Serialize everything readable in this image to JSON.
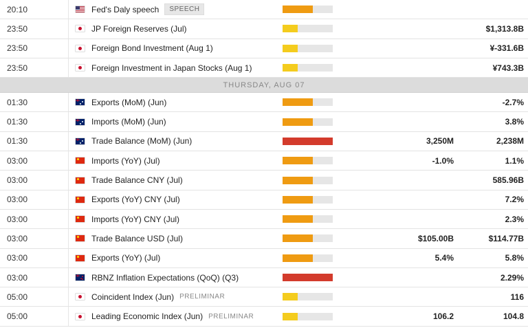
{
  "day_header": "THURSDAY, AUG 07",
  "colors": {
    "high": "#d33b2c",
    "medium": "#ef9b12",
    "low": "#f4cc1e",
    "track": "#e6e6e6"
  },
  "rows_before": [
    {
      "time": "20:10",
      "flag": "us",
      "flag_icon": "us-flag-icon",
      "event": "Fed's Daly speech",
      "badge": "SPEECH",
      "impact": "medium",
      "impact_level": 0.6,
      "consensus": "",
      "previous": ""
    },
    {
      "time": "23:50",
      "flag": "jp",
      "flag_icon": "jp-flag-icon",
      "event": "JP Foreign Reserves (Jul)",
      "impact": "low",
      "impact_level": 0.3,
      "consensus": "",
      "previous": "$1,313.8B"
    },
    {
      "time": "23:50",
      "flag": "jp",
      "flag_icon": "jp-flag-icon",
      "event": "Foreign Bond Investment (Aug 1)",
      "impact": "low",
      "impact_level": 0.3,
      "consensus": "",
      "previous": "¥-331.6B"
    },
    {
      "time": "23:50",
      "flag": "jp",
      "flag_icon": "jp-flag-icon",
      "event": "Foreign Investment in Japan Stocks (Aug 1)",
      "impact": "low",
      "impact_level": 0.3,
      "consensus": "",
      "previous": "¥743.3B"
    }
  ],
  "rows_after": [
    {
      "time": "01:30",
      "flag": "au",
      "flag_icon": "au-flag-icon",
      "event": "Exports (MoM) (Jun)",
      "impact": "medium",
      "impact_level": 0.6,
      "consensus": "",
      "previous": "-2.7%"
    },
    {
      "time": "01:30",
      "flag": "au",
      "flag_icon": "au-flag-icon",
      "event": "Imports (MoM) (Jun)",
      "impact": "medium",
      "impact_level": 0.6,
      "consensus": "",
      "previous": "3.8%"
    },
    {
      "time": "01:30",
      "flag": "au",
      "flag_icon": "au-flag-icon",
      "event": "Trade Balance (MoM) (Jun)",
      "impact": "high",
      "impact_level": 1.0,
      "consensus": "3,250M",
      "previous": "2,238M"
    },
    {
      "time": "03:00",
      "flag": "cn",
      "flag_icon": "cn-flag-icon",
      "event": "Imports (YoY) (Jul)",
      "impact": "medium",
      "impact_level": 0.6,
      "consensus": "-1.0%",
      "previous": "1.1%"
    },
    {
      "time": "03:00",
      "flag": "cn",
      "flag_icon": "cn-flag-icon",
      "event": "Trade Balance CNY (Jul)",
      "impact": "medium",
      "impact_level": 0.6,
      "consensus": "",
      "previous": "585.96B"
    },
    {
      "time": "03:00",
      "flag": "cn",
      "flag_icon": "cn-flag-icon",
      "event": "Exports (YoY) CNY (Jul)",
      "impact": "medium",
      "impact_level": 0.6,
      "consensus": "",
      "previous": "7.2%"
    },
    {
      "time": "03:00",
      "flag": "cn",
      "flag_icon": "cn-flag-icon",
      "event": "Imports (YoY) CNY (Jul)",
      "impact": "medium",
      "impact_level": 0.6,
      "consensus": "",
      "previous": "2.3%"
    },
    {
      "time": "03:00",
      "flag": "cn",
      "flag_icon": "cn-flag-icon",
      "event": "Trade Balance USD (Jul)",
      "impact": "medium",
      "impact_level": 0.6,
      "consensus": "$105.00B",
      "previous": "$114.77B"
    },
    {
      "time": "03:00",
      "flag": "cn",
      "flag_icon": "cn-flag-icon",
      "event": "Exports (YoY) (Jul)",
      "impact": "medium",
      "impact_level": 0.6,
      "consensus": "5.4%",
      "previous": "5.8%"
    },
    {
      "time": "03:00",
      "flag": "nz",
      "flag_icon": "nz-flag-icon",
      "event": "RBNZ Inflation Expectations (QoQ) (Q3)",
      "impact": "high",
      "impact_level": 1.0,
      "consensus": "",
      "previous": "2.29%"
    },
    {
      "time": "05:00",
      "flag": "jp",
      "flag_icon": "jp-flag-icon",
      "event": "Coincident Index (Jun)",
      "tag": "PRELIMINAR",
      "impact": "low",
      "impact_level": 0.3,
      "consensus": "",
      "previous": "116"
    },
    {
      "time": "05:00",
      "flag": "jp",
      "flag_icon": "jp-flag-icon",
      "event": "Leading Economic Index (Jun)",
      "tag": "PRELIMINAR",
      "impact": "low",
      "impact_level": 0.3,
      "consensus": "106.2",
      "previous": "104.8"
    }
  ]
}
